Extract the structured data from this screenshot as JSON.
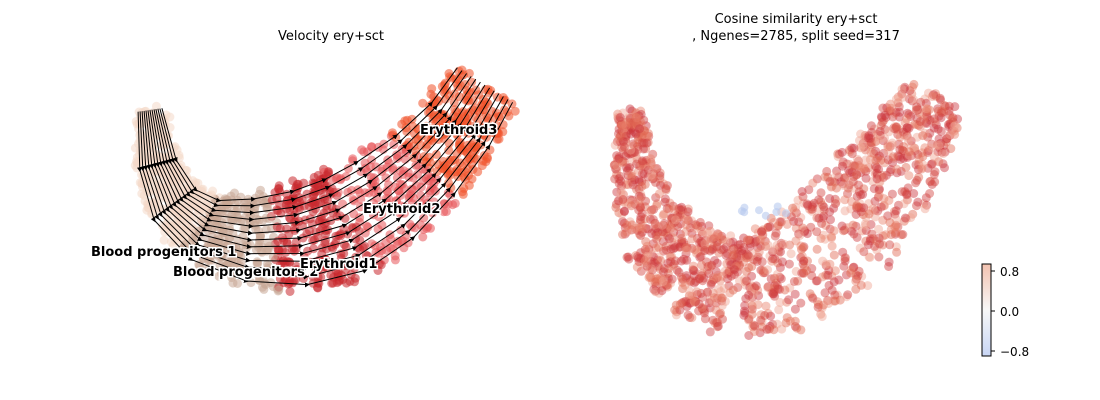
{
  "chart_data": [
    {
      "type": "scatter",
      "title": "Velocity ery+sct",
      "xlabel": "",
      "ylabel": "",
      "grid": false,
      "legend": "none",
      "overlay": "velocity streamlines with arrowheads",
      "colors": {
        "Blood progenitors 1": "#f4d8c8",
        "Blood progenitors 2": "#c9a896",
        "Erythroid1": "#c8282e",
        "Erythroid2": "#e8555a",
        "Erythroid3": "#f0522a"
      },
      "cluster_labels": [
        {
          "text": "Blood progenitors 1",
          "x": 91,
          "y": 251
        },
        {
          "text": "Blood progenitors 2",
          "x": 173,
          "y": 271
        },
        {
          "text": "Erythroid1",
          "x": 300,
          "y": 263
        },
        {
          "text": "Erythroid2",
          "x": 363,
          "y": 208
        },
        {
          "text": "Erythroid3",
          "x": 420,
          "y": 129
        }
      ]
    },
    {
      "type": "scatter",
      "title": "Cosine similarity ery+sct",
      "subtitle": ", Ngenes=2785, split seed=317",
      "xlabel": "",
      "ylabel": "",
      "grid": false,
      "colorbar": {
        "position": "right",
        "ticks": [
          "0.8",
          "0.0",
          "−0.8"
        ],
        "range": [
          -0.8,
          0.8
        ],
        "colormap": [
          "#c9d6f5",
          "#f7f7f7",
          "#f2c2b0"
        ]
      },
      "dominant_value_range": [
        0.4,
        0.9
      ],
      "point_colors": [
        "#c9343b",
        "#d2423e",
        "#e0654f",
        "#e8806a",
        "#cf3b3e",
        "#f0a392"
      ]
    }
  ]
}
